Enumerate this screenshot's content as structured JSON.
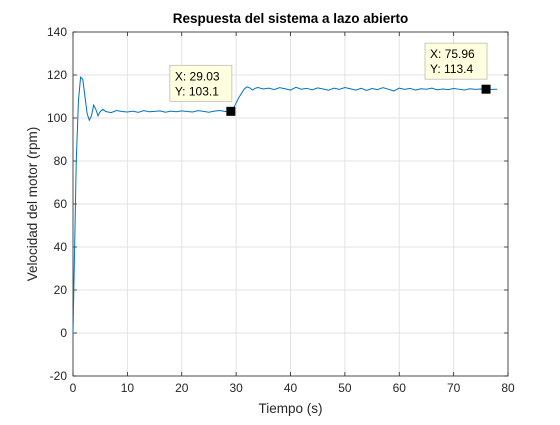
{
  "window": {
    "background": "#ffffff"
  },
  "chart_data": {
    "type": "line",
    "title": "Respuesta del sistema a lazo abierto",
    "xlabel": "Tiempo (s)",
    "ylabel": "Velocidad del motor (rpm)",
    "xlim": [
      0,
      80
    ],
    "ylim": [
      -20,
      140
    ],
    "xticks": [
      0,
      10,
      20,
      30,
      40,
      50,
      60,
      70,
      80
    ],
    "yticks": [
      -20,
      0,
      20,
      40,
      60,
      80,
      100,
      120,
      140
    ],
    "grid": true,
    "line_color": "#0072bd",
    "series": [
      {
        "x": [
          0,
          0.3,
          0.6,
          1.0,
          1.4,
          1.8,
          2.2,
          2.6,
          3.0,
          3.4,
          3.8,
          4.2,
          4.6,
          5.0,
          5.5,
          6,
          7,
          8,
          9,
          10,
          11,
          12,
          13,
          14,
          15,
          16,
          17,
          18,
          19,
          20,
          21,
          22,
          23,
          24,
          25,
          26,
          27,
          28,
          29.03,
          29.5,
          30,
          30.5,
          31,
          31.5,
          32,
          32.5,
          33,
          33.5,
          34,
          35,
          36,
          37,
          38,
          39,
          40,
          41,
          42,
          43,
          44,
          45,
          46,
          47,
          48,
          49,
          50,
          51,
          52,
          53,
          54,
          55,
          56,
          57,
          58,
          59,
          60,
          61,
          62,
          63,
          64,
          65,
          66,
          67,
          68,
          69,
          70,
          71,
          72,
          73,
          74,
          75,
          75.96,
          77,
          78
        ],
        "y": [
          0,
          40,
          80,
          108,
          119,
          118,
          110,
          102,
          99,
          101,
          106,
          104,
          101,
          103,
          104,
          103,
          102.5,
          103.5,
          103,
          102.8,
          103.2,
          102.6,
          103.4,
          102.9,
          103.1,
          103.3,
          102.7,
          103.2,
          102.9,
          103.3,
          103,
          102.8,
          103.4,
          103.1,
          102.7,
          103.2,
          103.5,
          103,
          103.1,
          104.5,
          107,
          109.5,
          111.5,
          113.5,
          114.5,
          114,
          113,
          113.8,
          114.2,
          113.5,
          113.9,
          113.2,
          114.1,
          113.6,
          113,
          114.3,
          113.4,
          113.8,
          113.1,
          114,
          113.5,
          112.9,
          113.9,
          113.3,
          114.2,
          113.6,
          113,
          113.8,
          112.8,
          113.7,
          113.2,
          114.1,
          113.4,
          112.6,
          113.9,
          113.3,
          113.8,
          113,
          113.6,
          113.4,
          113.9,
          113.1,
          113.5,
          113.2,
          113.7,
          113.4,
          113,
          113.6,
          113.3,
          113.5,
          113.4,
          113.3,
          113.4
        ]
      }
    ],
    "datatips": [
      {
        "x": 29.03,
        "y": 103.1,
        "line1": "X: 29.03",
        "line2": "Y: 103.1"
      },
      {
        "x": 75.96,
        "y": 113.4,
        "line1": "X: 75.96",
        "line2": "Y: 113.4"
      }
    ]
  }
}
